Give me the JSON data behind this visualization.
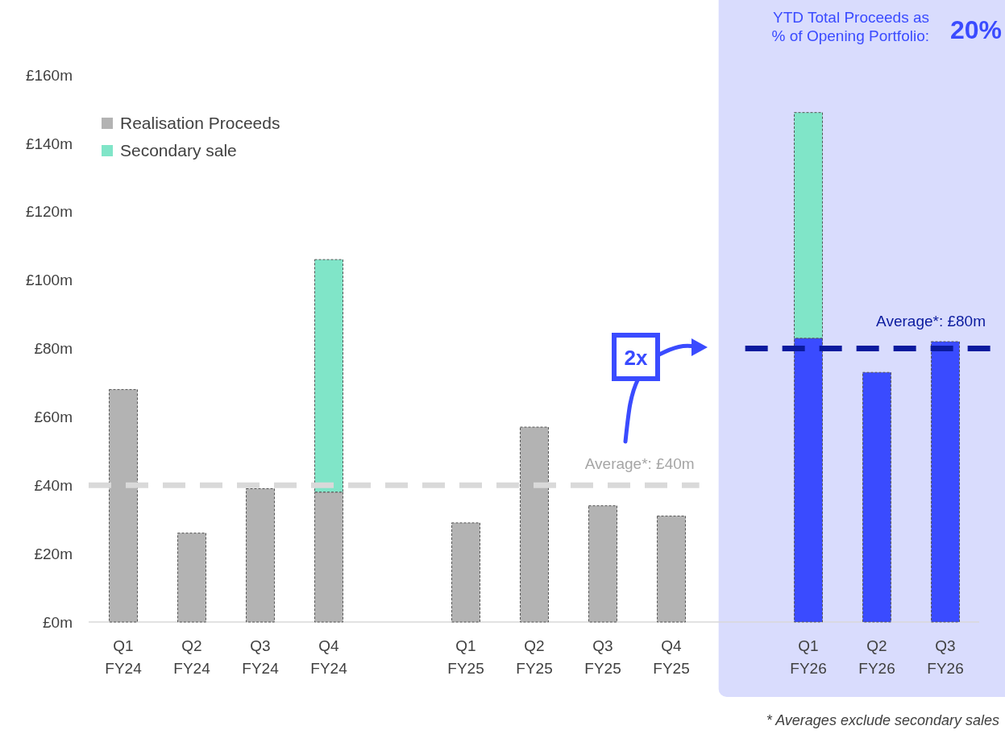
{
  "chart_data": {
    "type": "bar",
    "stacked": true,
    "categories": [
      "Q1 FY24",
      "Q2 FY24",
      "Q3 FY24",
      "Q4 FY24",
      null,
      "Q1 FY25",
      "Q2 FY25",
      "Q3 FY25",
      "Q4 FY25",
      null,
      "Q1 FY26",
      "Q2 FY26",
      "Q3 FY26"
    ],
    "series": [
      {
        "name": "Realisation Proceeds",
        "color": "#b3b3b3",
        "colors": [
          "#b3b3b3",
          "#b3b3b3",
          "#b3b3b3",
          "#b3b3b3",
          "#b3b3b3",
          "#b3b3b3",
          "#b3b3b3",
          "#b3b3b3",
          "#b3b3b3",
          "#b3b3b3",
          "#3a4bff",
          "#3a4bff",
          "#3a4bff"
        ],
        "values": [
          68,
          26,
          39,
          38,
          null,
          29,
          57,
          34,
          31,
          null,
          83,
          73,
          82
        ]
      },
      {
        "name": "Secondary sale",
        "color": "#80e5c8",
        "values": [
          null,
          null,
          null,
          68,
          null,
          null,
          null,
          null,
          null,
          null,
          66,
          null,
          null
        ]
      }
    ],
    "ylim": [
      0,
      160
    ],
    "yticks": [
      {
        "value": 0,
        "label": "£0m"
      },
      {
        "value": 20,
        "label": "£20m"
      },
      {
        "value": 40,
        "label": "£40m"
      },
      {
        "value": 60,
        "label": "£60m"
      },
      {
        "value": 80,
        "label": "£80m"
      },
      {
        "value": 100,
        "label": "£100m"
      },
      {
        "value": 120,
        "label": "£120m"
      },
      {
        "value": 140,
        "label": "£140m"
      },
      {
        "value": 160,
        "label": "£160m"
      }
    ],
    "grid": false,
    "legend": "top left",
    "ref_lines": [
      {
        "axis": "y",
        "value": 40,
        "label": "Average*: £40m",
        "color": "#d9d9d9",
        "line_style": "dashed"
      },
      {
        "axis": "y",
        "value": 80,
        "label": "Average*: £80m",
        "color": "#0a1a9e",
        "line_style": "dashed"
      }
    ],
    "annotations": [
      "YTD Total Proceeds as\n% of Opening Portfolio:",
      "20%",
      "2x",
      "* Averages exclude secondary sales"
    ]
  }
}
